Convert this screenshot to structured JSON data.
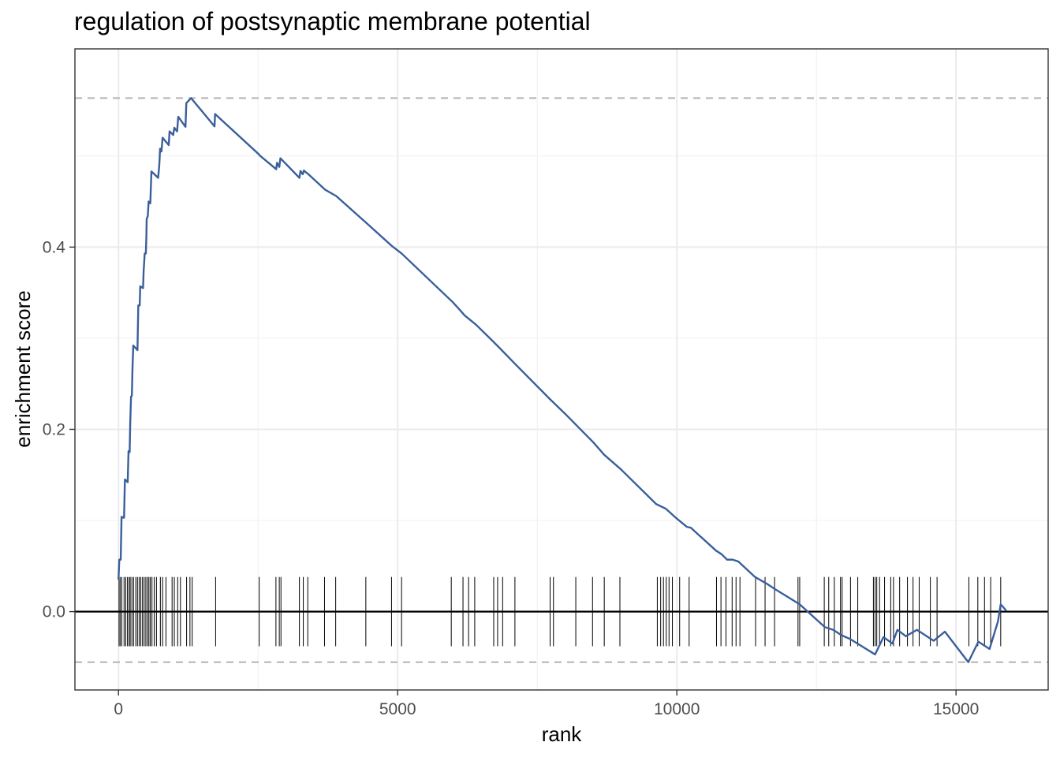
{
  "chart_data": {
    "type": "line",
    "title": "regulation of postsynaptic membrane potential",
    "xlabel": "rank",
    "ylabel": "enrichment score",
    "xlim": [
      -780,
      16650
    ],
    "ylim": [
      -0.086,
      0.6175
    ],
    "x_ticks": [
      0,
      5000,
      10000,
      15000
    ],
    "x_tick_labels": [
      "0",
      "5000",
      "10000",
      "15000"
    ],
    "y_ticks": [
      0.0,
      0.2,
      0.4
    ],
    "y_tick_labels": [
      "0.0",
      "0.2",
      "0.4"
    ],
    "grid": true,
    "legend": "none",
    "colors": {
      "line": "#3a5f9b",
      "threshold": "#b3b3b3",
      "zero_line": "#000000",
      "ticks": "#000000"
    },
    "thresholds": [
      0.5635,
      -0.0555
    ],
    "series": [
      {
        "values": [
          [
            0,
            0.035
          ],
          [
            15,
            0.057
          ],
          [
            40,
            0.057
          ],
          [
            55,
            0.104
          ],
          [
            100,
            0.103
          ],
          [
            115,
            0.145
          ],
          [
            165,
            0.142
          ],
          [
            180,
            0.176
          ],
          [
            200,
            0.175
          ],
          [
            210,
            0.206
          ],
          [
            225,
            0.236
          ],
          [
            240,
            0.237
          ],
          [
            250,
            0.265
          ],
          [
            265,
            0.292
          ],
          [
            340,
            0.287
          ],
          [
            355,
            0.336
          ],
          [
            380,
            0.336
          ],
          [
            390,
            0.357
          ],
          [
            440,
            0.355
          ],
          [
            450,
            0.373
          ],
          [
            470,
            0.393
          ],
          [
            490,
            0.393
          ],
          [
            500,
            0.412
          ],
          [
            505,
            0.431
          ],
          [
            525,
            0.434
          ],
          [
            540,
            0.45
          ],
          [
            570,
            0.448
          ],
          [
            590,
            0.483
          ],
          [
            710,
            0.476
          ],
          [
            730,
            0.489
          ],
          [
            745,
            0.508
          ],
          [
            770,
            0.505
          ],
          [
            790,
            0.52
          ],
          [
            900,
            0.512
          ],
          [
            915,
            0.527
          ],
          [
            980,
            0.523
          ],
          [
            1000,
            0.531
          ],
          [
            1050,
            0.527
          ],
          [
            1070,
            0.543
          ],
          [
            1200,
            0.532
          ],
          [
            1215,
            0.558
          ],
          [
            1300,
            0.5635
          ],
          [
            1720,
            0.5325
          ],
          [
            1730,
            0.546
          ],
          [
            2520,
            0.5015
          ],
          [
            2530,
            0.5005
          ],
          [
            2825,
            0.4855
          ],
          [
            2840,
            0.4925
          ],
          [
            2880,
            0.488
          ],
          [
            2900,
            0.4975
          ],
          [
            3240,
            0.476
          ],
          [
            3260,
            0.4835
          ],
          [
            3300,
            0.48
          ],
          [
            3320,
            0.484
          ],
          [
            3400,
            0.48
          ],
          [
            3700,
            0.463
          ],
          [
            3900,
            0.456
          ],
          [
            4430,
            0.427
          ],
          [
            4900,
            0.401
          ],
          [
            5070,
            0.393
          ],
          [
            5980,
            0.34
          ],
          [
            6100,
            0.332
          ],
          [
            6200,
            0.325
          ],
          [
            6400,
            0.315
          ],
          [
            6700,
            0.297
          ],
          [
            6830,
            0.289
          ],
          [
            7100,
            0.272
          ],
          [
            7730,
            0.233
          ],
          [
            8000,
            0.217
          ],
          [
            8500,
            0.186
          ],
          [
            8700,
            0.172
          ],
          [
            9000,
            0.156
          ],
          [
            9630,
            0.118
          ],
          [
            9800,
            0.113
          ],
          [
            10000,
            0.102
          ],
          [
            10180,
            0.093
          ],
          [
            10250,
            0.092
          ],
          [
            10700,
            0.067
          ],
          [
            10800,
            0.063
          ],
          [
            10900,
            0.057
          ],
          [
            11000,
            0.057
          ],
          [
            11100,
            0.055
          ],
          [
            11400,
            0.038
          ],
          [
            11600,
            0.031
          ],
          [
            11750,
            0.025
          ],
          [
            12200,
            0.008
          ],
          [
            12650,
            -0.017
          ],
          [
            12800,
            -0.02
          ],
          [
            12950,
            -0.026
          ],
          [
            13100,
            -0.03
          ],
          [
            13550,
            -0.047
          ],
          [
            13700,
            -0.028
          ],
          [
            13860,
            -0.035
          ],
          [
            13950,
            -0.02
          ],
          [
            14100,
            -0.027
          ],
          [
            14300,
            -0.02
          ],
          [
            14600,
            -0.032
          ],
          [
            14800,
            -0.022
          ],
          [
            15220,
            -0.0555
          ],
          [
            15400,
            -0.033
          ],
          [
            15600,
            -0.041
          ],
          [
            15750,
            -0.011
          ],
          [
            15800,
            0.008
          ],
          [
            15900,
            0.001
          ]
        ]
      }
    ],
    "hit_ranks": [
      10,
      30,
      60,
      100,
      130,
      160,
      190,
      210,
      240,
      270,
      310,
      340,
      370,
      400,
      430,
      460,
      490,
      520,
      545,
      570,
      600,
      640,
      680,
      750,
      790,
      850,
      960,
      1000,
      1060,
      1110,
      1220,
      1280,
      1320,
      1740,
      2520,
      2820,
      2880,
      2910,
      3240,
      3310,
      3390,
      3690,
      3890,
      4430,
      4890,
      5070,
      5960,
      6170,
      6270,
      6380,
      6720,
      6790,
      6880,
      7100,
      7730,
      7790,
      8190,
      8490,
      8700,
      8980,
      9650,
      9710,
      9760,
      9810,
      9860,
      9920,
      10050,
      10220,
      10710,
      10790,
      10880,
      10990,
      11060,
      11130,
      11410,
      11580,
      11750,
      12170,
      12200,
      12640,
      12720,
      12820,
      12930,
      12960,
      13110,
      13240,
      13520,
      13550,
      13580,
      13630,
      13720,
      13830,
      13880,
      13990,
      14130,
      14230,
      14340,
      14540,
      14660,
      15230,
      15390,
      15510,
      15620,
      15800
    ],
    "hit_tick_range": [
      -0.038,
      0.038
    ]
  }
}
